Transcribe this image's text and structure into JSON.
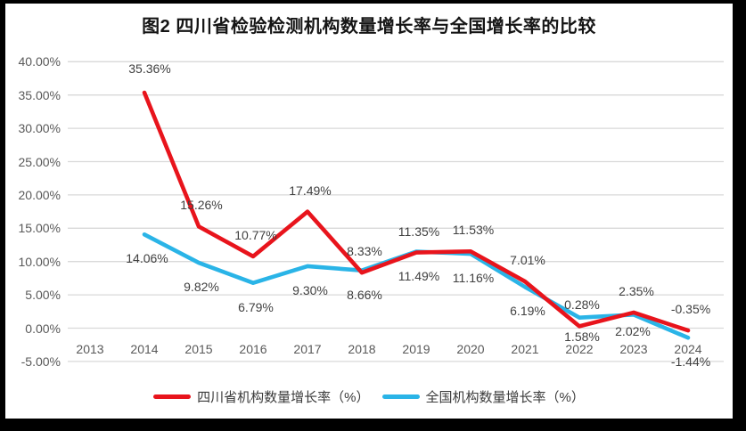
{
  "chart_data": {
    "type": "line",
    "title": "图2  四川省检验检测机构数量增长率与全国增长率的比较",
    "xlabel": "",
    "ylabel": "",
    "categories": [
      "2013",
      "2014",
      "2015",
      "2016",
      "2017",
      "2018",
      "2019",
      "2020",
      "2021",
      "2022",
      "2023",
      "2024"
    ],
    "series": [
      {
        "name": "四川省机构数量增长率（%）",
        "color": "#e8141c",
        "values": [
          null,
          35.36,
          15.26,
          10.77,
          17.49,
          8.33,
          11.35,
          11.53,
          7.01,
          0.28,
          2.35,
          -0.35
        ]
      },
      {
        "name": "全国机构数量增长率（%）",
        "color": "#2ab4e7",
        "values": [
          null,
          14.06,
          9.82,
          6.79,
          9.3,
          8.66,
          11.49,
          11.16,
          6.19,
          1.58,
          2.02,
          -1.44
        ]
      }
    ],
    "ylim": [
      -5,
      40
    ],
    "ytick_step": 5,
    "ytick_labels": [
      "-5.00%",
      "0.00%",
      "5.00%",
      "10.00%",
      "15.00%",
      "20.00%",
      "25.00%",
      "30.00%",
      "35.00%",
      "40.00%"
    ],
    "grid": true,
    "gridline_color": "#d9d9d9",
    "data_labels": true,
    "label_format": "two-decimal-percent",
    "legend_position": "bottom",
    "axis_text_color": "#595959",
    "label_text_color": "#404040",
    "background_color": "#ffffff",
    "frame_color": "#000000"
  }
}
